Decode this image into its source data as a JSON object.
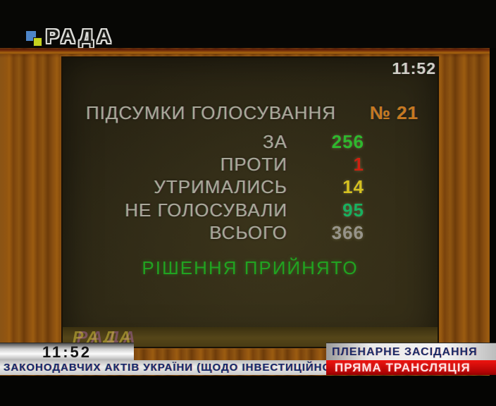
{
  "channel": {
    "logo_text": "РАДА"
  },
  "board": {
    "clock": "11:52",
    "title": "ПІДСУМКИ ГОЛОСУВАННЯ",
    "vote_number": "№ 21",
    "rows": [
      {
        "label": "ЗА",
        "value": "256",
        "color": "#2eb82e"
      },
      {
        "label": "ПРОТИ",
        "value": "1",
        "color": "#cc2010"
      },
      {
        "label": "УТРИМАЛИСЬ",
        "value": "14",
        "color": "#d4c020"
      },
      {
        "label": "НЕ ГОЛОСУВАЛИ",
        "value": "95",
        "color": "#18b060"
      },
      {
        "label": "ВСЬОГО",
        "value": "366",
        "color": "#97948a"
      }
    ],
    "result": "РІШЕННЯ ПРИЙНЯТО",
    "result_color": "#21a321",
    "vote_number_color": "#c8781e",
    "watermark": "РАДА"
  },
  "overlay": {
    "clock": "11:52",
    "banner_top": "ПЛЕНАРНЕ ЗАСІДАННЯ",
    "banner_live": "ПРЯМА ТРАНСЛЯЦІЯ",
    "ticker": "ЗАКОНОДАВЧИХ АКТІВ УКРАЇНИ (ЩОДО ІНВЕСТИЦІЙНОЇ П",
    "live_banner_bg": "#c80808"
  }
}
